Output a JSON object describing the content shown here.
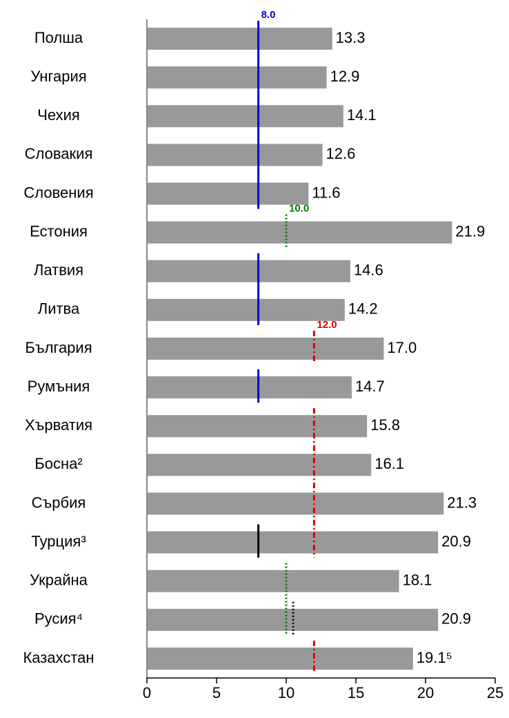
{
  "chart_data": {
    "type": "barh",
    "categories": [
      "Полша",
      "Унгария",
      "Чехия",
      "Словакия",
      "Словения",
      "Естония",
      "Латвия",
      "Литва",
      "България",
      "Румъния",
      "Хърватия",
      "Босна²",
      "Сърбия",
      "Турция³",
      "Украйна",
      "Русия⁴",
      "Казахстан"
    ],
    "values": [
      13.3,
      12.9,
      14.1,
      12.6,
      11.6,
      21.9,
      14.6,
      14.2,
      17.0,
      14.7,
      15.8,
      16.1,
      21.3,
      20.9,
      18.1,
      20.9,
      19.1
    ],
    "value_labels": [
      "13.3",
      "12.9",
      "14.1",
      "12.6",
      "11.6",
      "21.9",
      "14.6",
      "14.2",
      "17.0",
      "14.7",
      "15.8",
      "16.1",
      "21.3",
      "20.9",
      "18.1",
      "20.9",
      "19.1⁵"
    ],
    "color": "#999999",
    "xlim": [
      0,
      25
    ],
    "xticks": [
      0,
      5,
      10,
      15,
      20,
      25
    ],
    "reference_lines": [
      {
        "value": 8.0,
        "label": "8.0",
        "color": "#0000cc",
        "style": "solid",
        "rows": [
          0,
          4
        ]
      },
      {
        "value": 8.0,
        "color": "#0000cc",
        "style": "solid",
        "rows": [
          6,
          7
        ]
      },
      {
        "value": 8.0,
        "color": "#0000cc",
        "style": "solid",
        "rows": [
          9,
          9
        ]
      },
      {
        "value": 10.0,
        "label": "10.0",
        "color": "#007700",
        "style": "dotted",
        "rows": [
          5,
          5
        ]
      },
      {
        "value": 12.0,
        "label": "12.0",
        "color": "#dd0000",
        "style": "dashdot",
        "rows": [
          8,
          8
        ]
      },
      {
        "value": 12.0,
        "color": "#dd0000",
        "style": "dashdot",
        "rows": [
          10,
          13
        ]
      },
      {
        "value": 12.0,
        "color": "#dd0000",
        "style": "dashdot",
        "rows": [
          16,
          16
        ]
      },
      {
        "value": 8.0,
        "color": "#000000",
        "style": "solid",
        "rows": [
          13,
          13
        ]
      },
      {
        "value": 10.0,
        "color": "#007700",
        "style": "dotted",
        "rows": [
          14,
          15
        ]
      },
      {
        "value": 10.5,
        "color": "#000000",
        "style": "dotted",
        "rows": [
          15,
          15
        ]
      }
    ]
  }
}
